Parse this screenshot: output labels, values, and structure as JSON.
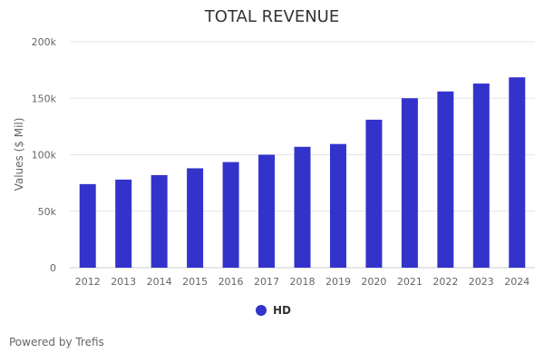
{
  "chart_data": {
    "type": "bar",
    "title": "TOTAL REVENUE",
    "xlabel": "",
    "ylabel": "Values ($ Mil)",
    "categories": [
      "2012",
      "2013",
      "2014",
      "2015",
      "2016",
      "2017",
      "2018",
      "2019",
      "2020",
      "2021",
      "2022",
      "2023",
      "2024"
    ],
    "series": [
      {
        "name": "HD",
        "color": "#3333cc",
        "values": [
          74000,
          78000,
          82000,
          88000,
          93500,
          100000,
          107000,
          109500,
          131000,
          150000,
          156000,
          163000,
          168500
        ]
      }
    ],
    "ylim": [
      0,
      200000
    ],
    "yticks": [
      0,
      50000,
      100000,
      150000,
      200000
    ],
    "ytick_labels": [
      "0",
      "50k",
      "100k",
      "150k",
      "200k"
    ],
    "grid": true,
    "legend_position": "bottom-center"
  },
  "footer": {
    "credit": "Powered by Trefis"
  },
  "colors": {
    "bar": "#3333cc",
    "gridline": "#e6e6e6",
    "axis_text": "#666666"
  }
}
